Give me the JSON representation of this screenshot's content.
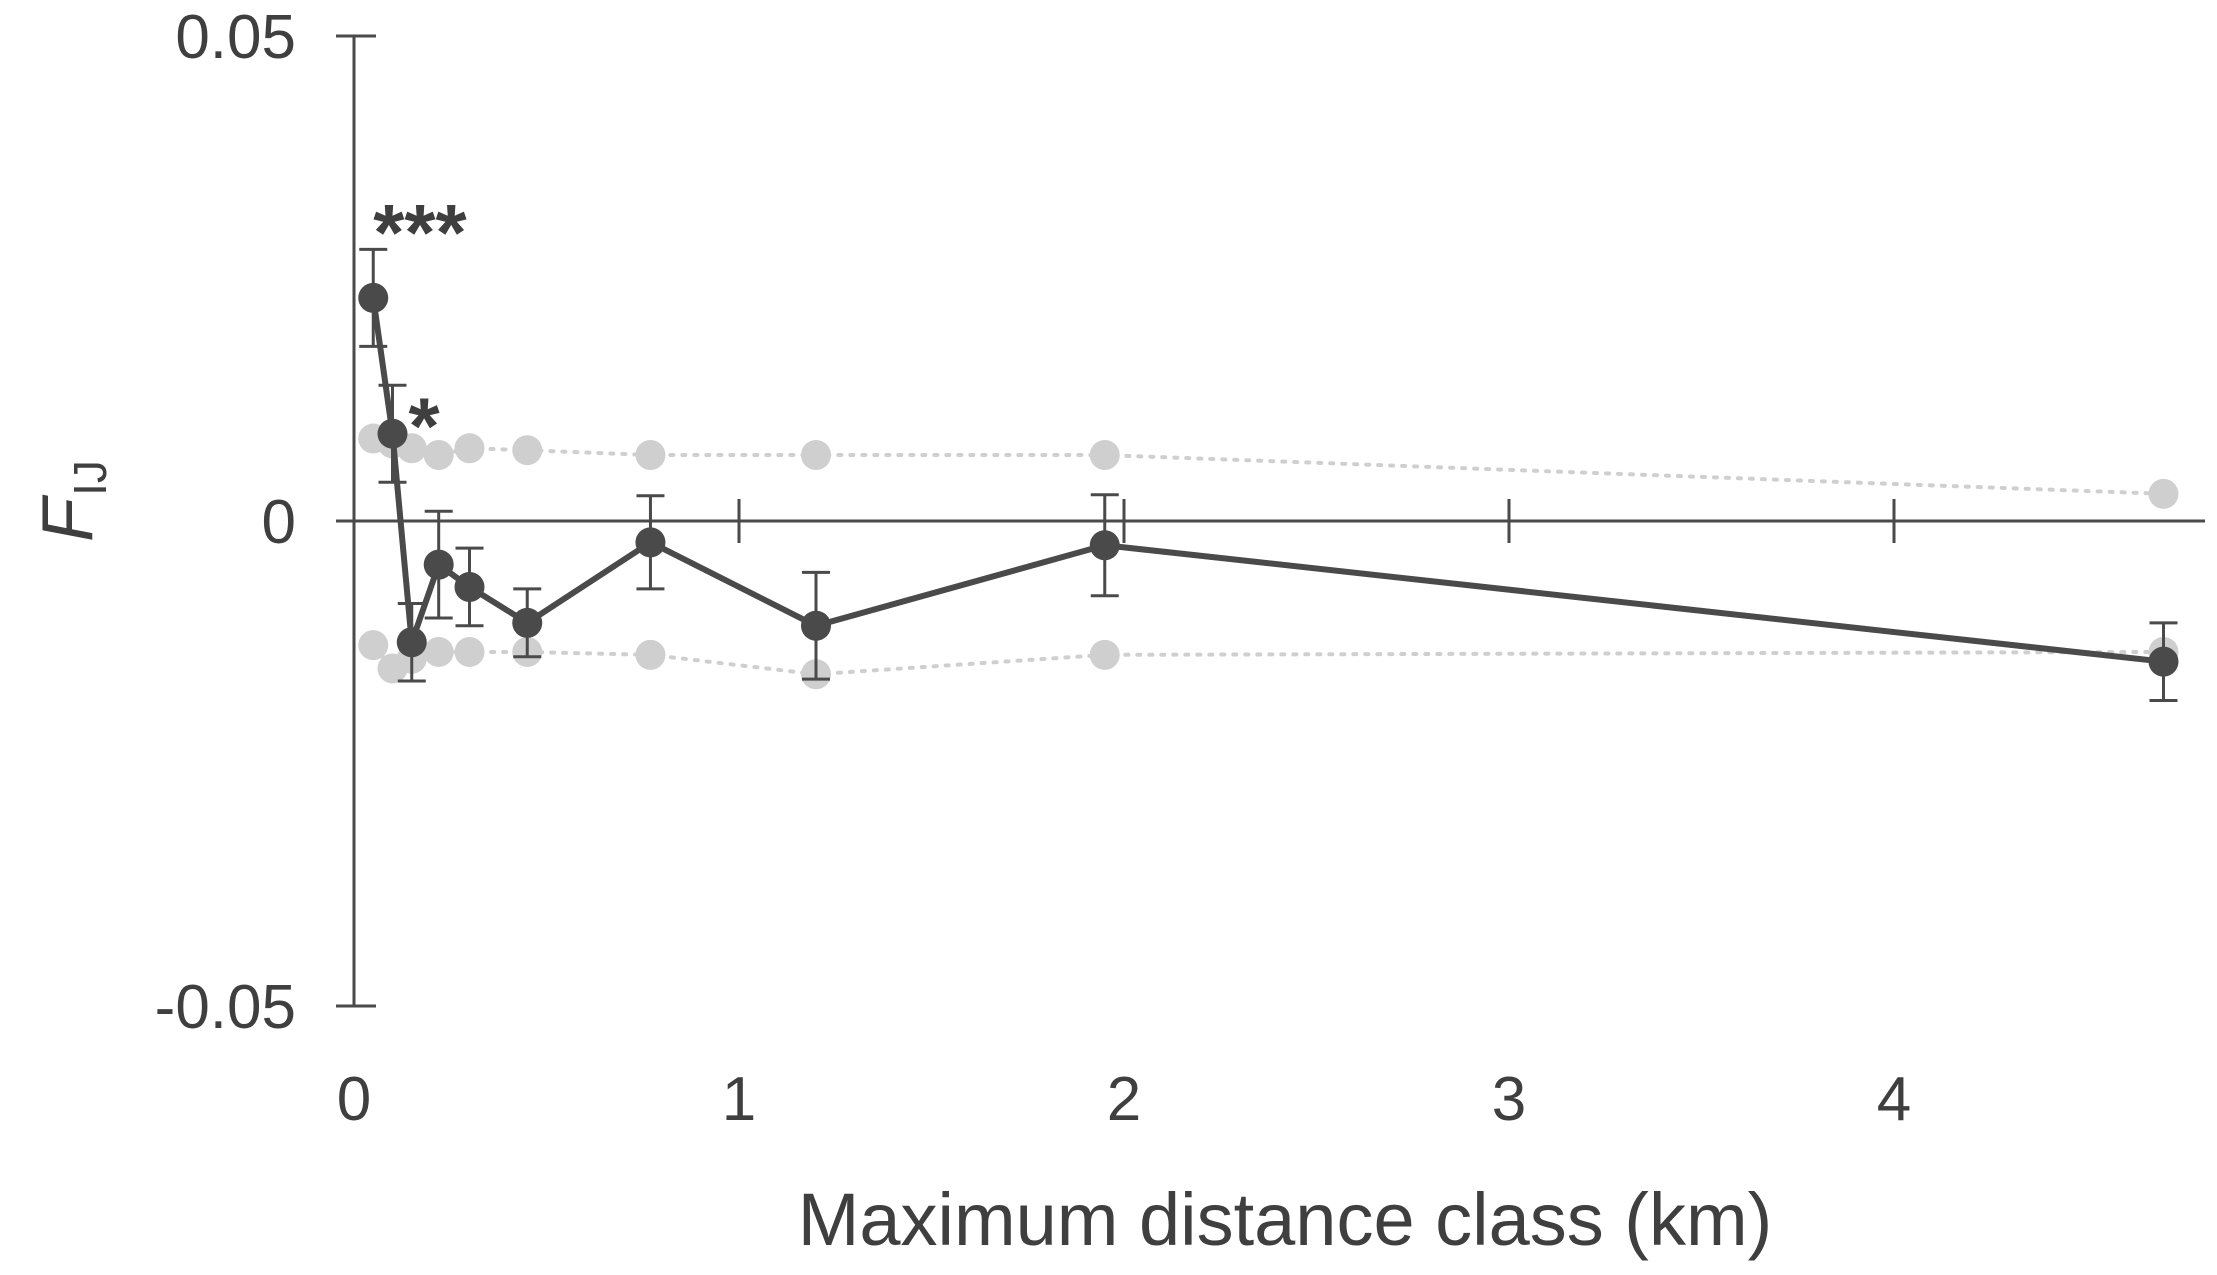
{
  "chart_data": {
    "type": "line",
    "xlabel": "Maximum distance class (km)",
    "ylabel": "F",
    "ylabel_subscript": "IJ",
    "xlim": [
      0,
      4.8
    ],
    "ylim": [
      -0.05,
      0.05
    ],
    "x_ticks": [
      0,
      1,
      2,
      3,
      4
    ],
    "x_tick_labels": [
      "0",
      "1",
      "2",
      "3",
      "4"
    ],
    "y_ticks": [
      -0.05,
      0,
      0.05
    ],
    "y_tick_labels": [
      "-0.05",
      "0",
      "0.05"
    ],
    "grid": false,
    "legend": "none",
    "x": [
      0.05,
      0.1,
      0.15,
      0.22,
      0.3,
      0.45,
      0.77,
      1.2,
      1.95,
      4.7
    ],
    "series": [
      {
        "style": "observed",
        "color": "#4a4a4a",
        "values": [
          0.023,
          0.009,
          -0.0125,
          -0.0045,
          -0.0068,
          -0.0105,
          -0.0022,
          -0.0108,
          -0.0025,
          -0.0145
        ],
        "err": [
          0.005,
          0.005,
          0.004,
          0.0055,
          0.004,
          0.0035,
          0.0048,
          0.0055,
          0.0052,
          0.004
        ]
      },
      {
        "style": "upper-95-envelope",
        "color": "#cfcfcf",
        "values": [
          0.0085,
          0.008,
          0.0075,
          0.0068,
          0.0075,
          0.0073,
          0.0068,
          0.0068,
          0.0068,
          0.0028
        ]
      },
      {
        "style": "lower-95-envelope",
        "color": "#cfcfcf",
        "values": [
          -0.0128,
          -0.0152,
          -0.0142,
          -0.0135,
          -0.0135,
          -0.0135,
          -0.0138,
          -0.0158,
          -0.0138,
          -0.0135
        ]
      }
    ],
    "annotations": [
      {
        "text": "***",
        "x": 0.05,
        "series_index": 0
      },
      {
        "text": "*",
        "x": 0.1,
        "series_index": 0
      }
    ]
  }
}
